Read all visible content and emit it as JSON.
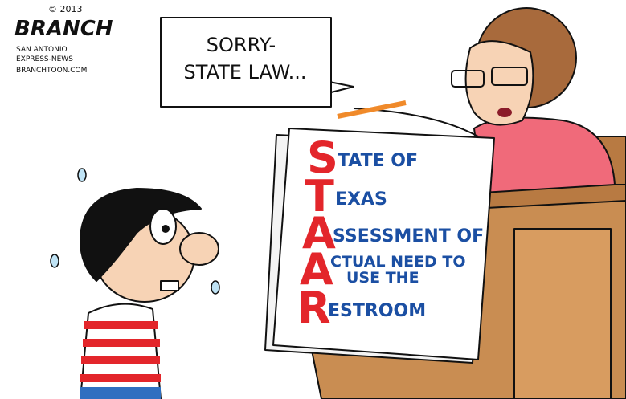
{
  "credit": {
    "copyright": "© 2013",
    "artist": "BRANCH",
    "publication": [
      "SAN ANTONIO",
      "EXPRESS-NEWS"
    ],
    "website": "BRANCHTOON.COM"
  },
  "speech_bubble": {
    "lines": [
      "SORRY-",
      "STATE LAW..."
    ]
  },
  "sign": {
    "rows": [
      {
        "initial": "S",
        "rest": [
          "TATE OF"
        ]
      },
      {
        "initial": "T",
        "rest": [
          "EXAS"
        ]
      },
      {
        "initial": "A",
        "rest": [
          "SSESSMENT OF"
        ]
      },
      {
        "initial": "A",
        "rest": [
          "CTUAL NEED TO",
          "USE THE"
        ]
      },
      {
        "initial": "R",
        "rest": [
          "ESTROOM"
        ]
      }
    ]
  }
}
